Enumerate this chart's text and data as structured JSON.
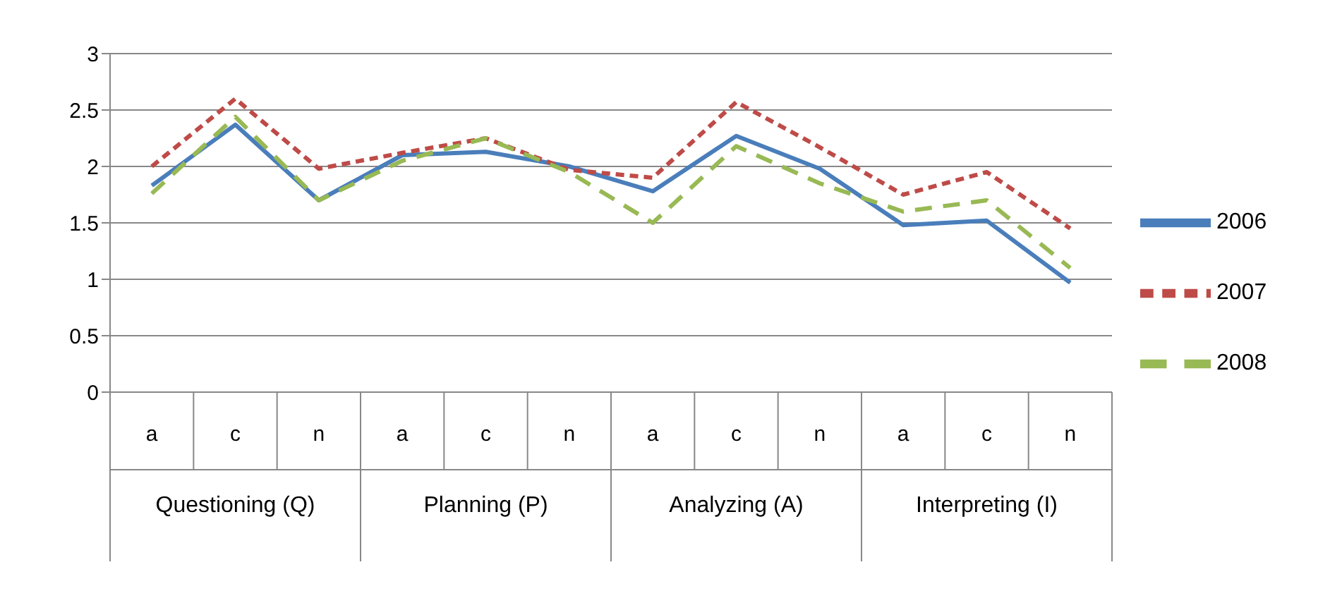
{
  "chart_data": {
    "type": "line",
    "categories": [
      "a",
      "c",
      "n",
      "a",
      "c",
      "n",
      "a",
      "c",
      "n",
      "a",
      "c",
      "n"
    ],
    "annotations": [
      "Questioning (Q)",
      "Planning (P)",
      "Analyzing (A)",
      "Interpreting (I)"
    ],
    "series": [
      {
        "name": "2006",
        "color": "#4a7ebb",
        "line_style": "solid",
        "values": [
          1.83,
          2.37,
          1.7,
          2.1,
          2.13,
          2.0,
          1.78,
          2.27,
          1.98,
          1.48,
          1.52,
          0.97
        ]
      },
      {
        "name": "2007",
        "color": "#be4b48",
        "line_style": "dashed",
        "values": [
          2.0,
          2.6,
          1.98,
          2.12,
          2.25,
          1.97,
          1.9,
          2.57,
          2.17,
          1.75,
          1.95,
          1.45
        ]
      },
      {
        "name": "2008",
        "color": "#98b954",
        "line_style": "dashed",
        "values": [
          1.76,
          2.44,
          1.7,
          2.05,
          2.25,
          1.95,
          1.5,
          2.18,
          1.85,
          1.6,
          1.7,
          1.1
        ]
      }
    ],
    "ylim": [
      0,
      3
    ],
    "yticks": [
      0,
      0.5,
      1,
      1.5,
      2,
      2.5,
      3
    ],
    "grid": "y",
    "legend": "right",
    "marker": "none"
  }
}
